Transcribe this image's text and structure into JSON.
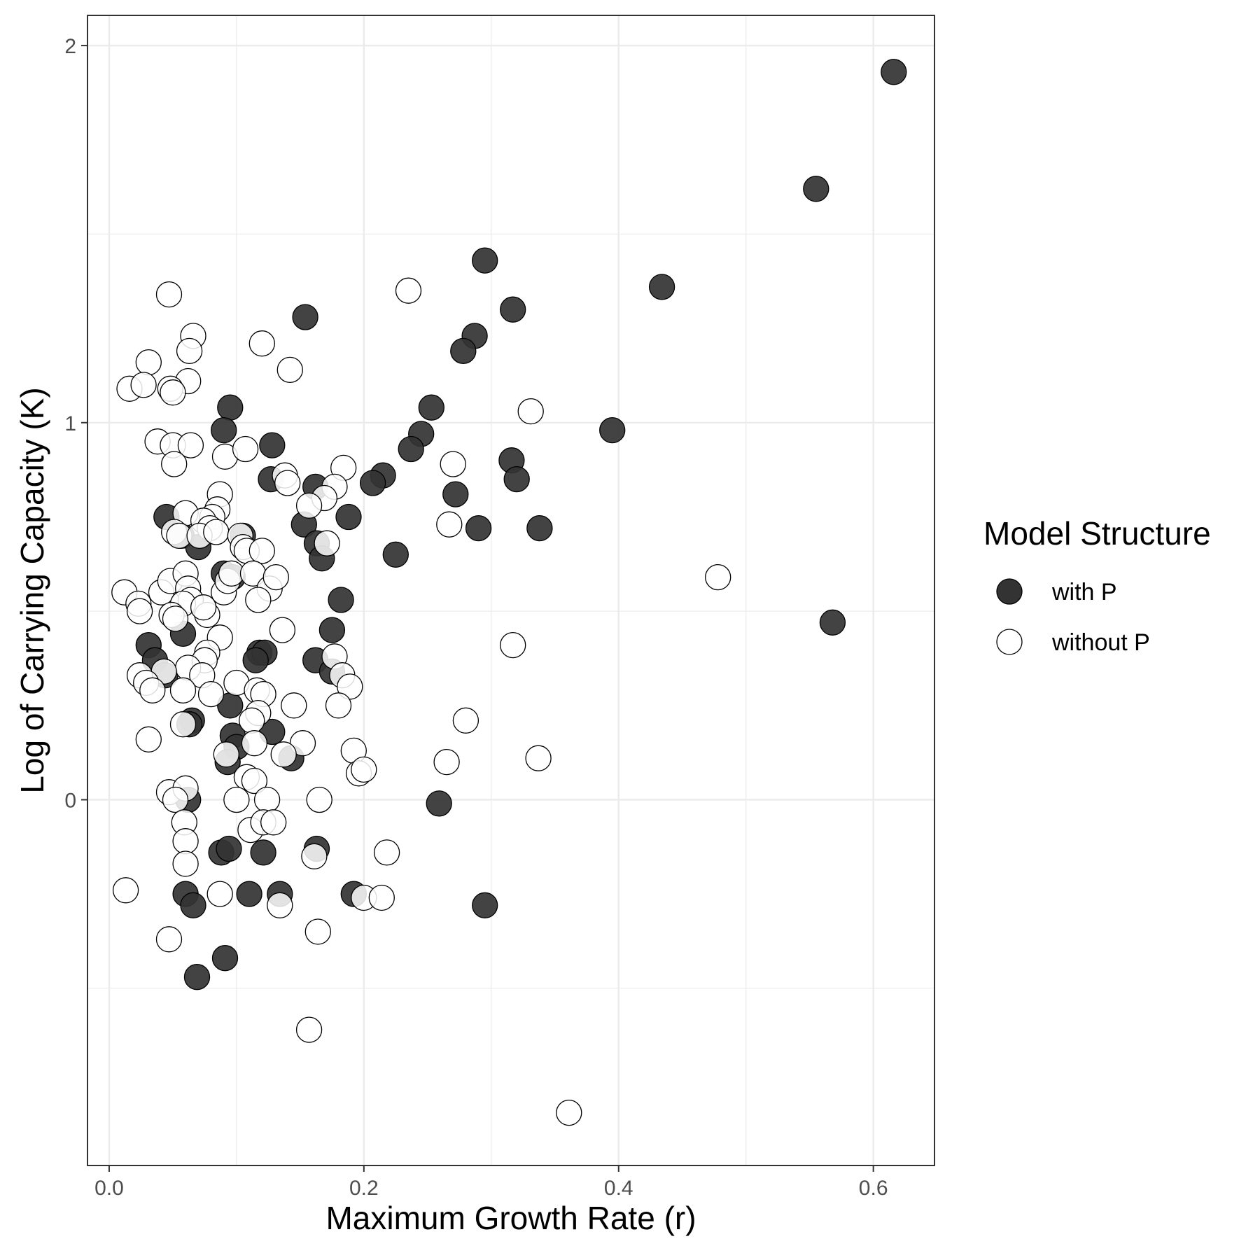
{
  "chart_data": {
    "type": "scatter",
    "xlabel": "Maximum Growth Rate (r)",
    "ylabel": "Log of Carrying Capacity (K)",
    "xlim": [
      -0.017,
      0.648
    ],
    "ylim": [
      -0.97,
      2.08
    ],
    "xticks": [
      0.0,
      0.2,
      0.4,
      0.6
    ],
    "xtick_labels": [
      "0.0",
      "0.2",
      "0.4",
      "0.6"
    ],
    "yticks": [
      0,
      1,
      2
    ],
    "ytick_labels": [
      "0",
      "1",
      "2"
    ],
    "grid": true,
    "legend": {
      "title": "Model Structure",
      "position": "right",
      "entries": [
        "with P",
        "without P"
      ]
    },
    "colors": {
      "with P": "#333333",
      "without P": "#ffffff",
      "stroke": "#000000",
      "grid": "#ebebeb"
    },
    "series": [
      {
        "name": "with P",
        "fill": "#333333",
        "points": [
          [
            0.616,
            1.93
          ],
          [
            0.555,
            1.62
          ],
          [
            0.434,
            1.36
          ],
          [
            0.395,
            0.98
          ],
          [
            0.568,
            0.47
          ],
          [
            0.295,
            1.43
          ],
          [
            0.317,
            1.3
          ],
          [
            0.287,
            1.23
          ],
          [
            0.278,
            1.19
          ],
          [
            0.253,
            1.04
          ],
          [
            0.245,
            0.97
          ],
          [
            0.237,
            0.93
          ],
          [
            0.316,
            0.9
          ],
          [
            0.32,
            0.85
          ],
          [
            0.272,
            0.81
          ],
          [
            0.338,
            0.72
          ],
          [
            0.29,
            0.72
          ],
          [
            0.225,
            0.65
          ],
          [
            0.215,
            0.86
          ],
          [
            0.207,
            0.84
          ],
          [
            0.154,
            1.28
          ],
          [
            0.128,
            0.94
          ],
          [
            0.127,
            0.85
          ],
          [
            0.162,
            0.83
          ],
          [
            0.153,
            0.73
          ],
          [
            0.188,
            0.75
          ],
          [
            0.163,
            0.68
          ],
          [
            0.167,
            0.64
          ],
          [
            0.182,
            0.53
          ],
          [
            0.175,
            0.45
          ],
          [
            0.095,
            1.04
          ],
          [
            0.09,
            0.98
          ],
          [
            0.105,
            0.7
          ],
          [
            0.09,
            0.6
          ],
          [
            0.097,
            0.59
          ],
          [
            0.045,
            0.75
          ],
          [
            0.057,
            0.7
          ],
          [
            0.07,
            0.67
          ],
          [
            0.058,
            0.44
          ],
          [
            0.031,
            0.41
          ],
          [
            0.036,
            0.37
          ],
          [
            0.044,
            0.33
          ],
          [
            0.118,
            0.39
          ],
          [
            0.122,
            0.39
          ],
          [
            0.115,
            0.37
          ],
          [
            0.162,
            0.37
          ],
          [
            0.175,
            0.34
          ],
          [
            0.095,
            0.25
          ],
          [
            0.065,
            0.21
          ],
          [
            0.063,
            0.2
          ],
          [
            0.097,
            0.17
          ],
          [
            0.1,
            0.14
          ],
          [
            0.093,
            0.1
          ],
          [
            0.128,
            0.18
          ],
          [
            0.143,
            0.11
          ],
          [
            0.062,
            0.0
          ],
          [
            0.259,
            -0.01
          ],
          [
            0.088,
            -0.14
          ],
          [
            0.094,
            -0.13
          ],
          [
            0.121,
            -0.14
          ],
          [
            0.163,
            -0.13
          ],
          [
            0.06,
            -0.25
          ],
          [
            0.066,
            -0.28
          ],
          [
            0.11,
            -0.25
          ],
          [
            0.134,
            -0.25
          ],
          [
            0.192,
            -0.25
          ],
          [
            0.295,
            -0.28
          ],
          [
            0.091,
            -0.42
          ],
          [
            0.069,
            -0.47
          ]
        ]
      },
      {
        "name": "without P",
        "fill": "#ffffff",
        "points": [
          [
            0.047,
            1.34
          ],
          [
            0.066,
            1.23
          ],
          [
            0.063,
            1.19
          ],
          [
            0.031,
            1.16
          ],
          [
            0.062,
            1.11
          ],
          [
            0.016,
            1.09
          ],
          [
            0.027,
            1.1
          ],
          [
            0.048,
            1.09
          ],
          [
            0.05,
            1.08
          ],
          [
            0.12,
            1.21
          ],
          [
            0.142,
            1.14
          ],
          [
            0.235,
            1.35
          ],
          [
            0.331,
            1.03
          ],
          [
            0.038,
            0.95
          ],
          [
            0.05,
            0.94
          ],
          [
            0.064,
            0.94
          ],
          [
            0.051,
            0.89
          ],
          [
            0.091,
            0.91
          ],
          [
            0.107,
            0.93
          ],
          [
            0.27,
            0.89
          ],
          [
            0.138,
            0.86
          ],
          [
            0.14,
            0.84
          ],
          [
            0.184,
            0.88
          ],
          [
            0.177,
            0.83
          ],
          [
            0.169,
            0.8
          ],
          [
            0.157,
            0.78
          ],
          [
            0.087,
            0.81
          ],
          [
            0.085,
            0.77
          ],
          [
            0.081,
            0.75
          ],
          [
            0.06,
            0.76
          ],
          [
            0.074,
            0.74
          ],
          [
            0.079,
            0.72
          ],
          [
            0.051,
            0.71
          ],
          [
            0.055,
            0.7
          ],
          [
            0.071,
            0.7
          ],
          [
            0.084,
            0.71
          ],
          [
            0.103,
            0.7
          ],
          [
            0.105,
            0.67
          ],
          [
            0.108,
            0.66
          ],
          [
            0.12,
            0.66
          ],
          [
            0.171,
            0.68
          ],
          [
            0.267,
            0.73
          ],
          [
            0.012,
            0.55
          ],
          [
            0.023,
            0.52
          ],
          [
            0.024,
            0.5
          ],
          [
            0.041,
            0.55
          ],
          [
            0.048,
            0.58
          ],
          [
            0.06,
            0.6
          ],
          [
            0.062,
            0.56
          ],
          [
            0.064,
            0.53
          ],
          [
            0.058,
            0.52
          ],
          [
            0.049,
            0.49
          ],
          [
            0.052,
            0.48
          ],
          [
            0.077,
            0.49
          ],
          [
            0.074,
            0.51
          ],
          [
            0.09,
            0.55
          ],
          [
            0.093,
            0.58
          ],
          [
            0.096,
            0.6
          ],
          [
            0.113,
            0.6
          ],
          [
            0.126,
            0.56
          ],
          [
            0.131,
            0.59
          ],
          [
            0.117,
            0.53
          ],
          [
            0.087,
            0.43
          ],
          [
            0.077,
            0.39
          ],
          [
            0.075,
            0.37
          ],
          [
            0.062,
            0.35
          ],
          [
            0.043,
            0.34
          ],
          [
            0.024,
            0.33
          ],
          [
            0.029,
            0.31
          ],
          [
            0.034,
            0.29
          ],
          [
            0.073,
            0.33
          ],
          [
            0.08,
            0.28
          ],
          [
            0.058,
            0.29
          ],
          [
            0.1,
            0.31
          ],
          [
            0.116,
            0.29
          ],
          [
            0.121,
            0.28
          ],
          [
            0.117,
            0.23
          ],
          [
            0.112,
            0.21
          ],
          [
            0.136,
            0.45
          ],
          [
            0.177,
            0.38
          ],
          [
            0.183,
            0.33
          ],
          [
            0.189,
            0.3
          ],
          [
            0.18,
            0.25
          ],
          [
            0.145,
            0.25
          ],
          [
            0.031,
            0.16
          ],
          [
            0.058,
            0.2
          ],
          [
            0.092,
            0.12
          ],
          [
            0.114,
            0.15
          ],
          [
            0.108,
            0.06
          ],
          [
            0.114,
            0.05
          ],
          [
            0.152,
            0.15
          ],
          [
            0.137,
            0.12
          ],
          [
            0.192,
            0.13
          ],
          [
            0.196,
            0.07
          ],
          [
            0.2,
            0.08
          ],
          [
            0.265,
            0.1
          ],
          [
            0.28,
            0.21
          ],
          [
            0.317,
            0.41
          ],
          [
            0.337,
            0.11
          ],
          [
            0.478,
            0.59
          ],
          [
            0.047,
            0.02
          ],
          [
            0.06,
            0.03
          ],
          [
            0.052,
            0.0
          ],
          [
            0.1,
            0.0
          ],
          [
            0.124,
            0.0
          ],
          [
            0.165,
            0.0
          ],
          [
            0.059,
            -0.06
          ],
          [
            0.06,
            -0.11
          ],
          [
            0.06,
            -0.17
          ],
          [
            0.111,
            -0.08
          ],
          [
            0.121,
            -0.06
          ],
          [
            0.129,
            -0.06
          ],
          [
            0.161,
            -0.15
          ],
          [
            0.218,
            -0.14
          ],
          [
            0.013,
            -0.24
          ],
          [
            0.087,
            -0.25
          ],
          [
            0.134,
            -0.28
          ],
          [
            0.2,
            -0.26
          ],
          [
            0.214,
            -0.26
          ],
          [
            0.047,
            -0.37
          ],
          [
            0.164,
            -0.35
          ],
          [
            0.157,
            -0.61
          ],
          [
            0.361,
            -0.83
          ]
        ]
      }
    ]
  }
}
